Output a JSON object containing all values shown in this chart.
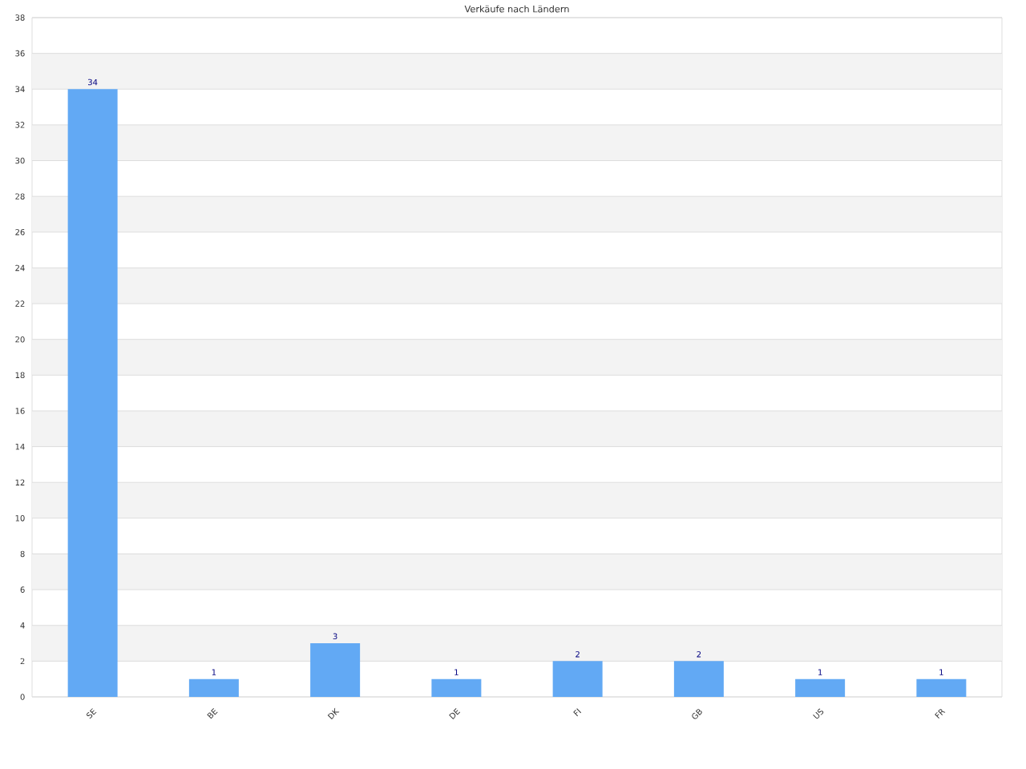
{
  "chart_data": {
    "type": "bar",
    "title": "Verkäufe nach Ländern",
    "categories": [
      "SE",
      "BE",
      "DK",
      "DE",
      "FI",
      "GB",
      "US",
      "FR"
    ],
    "values": [
      34,
      1,
      3,
      1,
      2,
      2,
      1,
      1
    ],
    "color": "#62a9f4",
    "ylim": [
      0,
      38
    ],
    "yticks": [
      0,
      2,
      4,
      6,
      8,
      10,
      12,
      14,
      16,
      18,
      20,
      22,
      24,
      26,
      28,
      30,
      32,
      34,
      36,
      38
    ],
    "grid": "y",
    "data_labels": true
  }
}
